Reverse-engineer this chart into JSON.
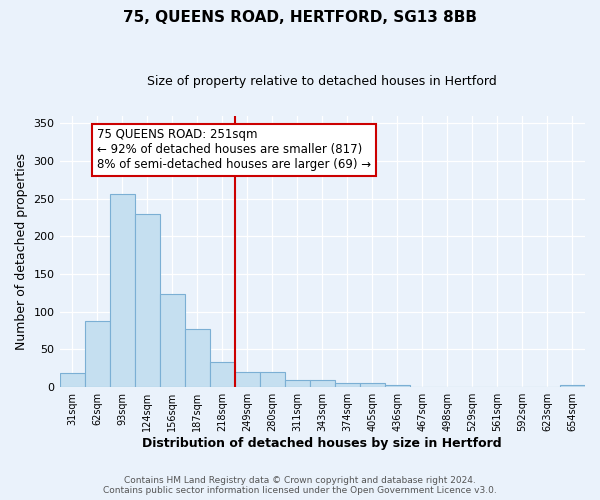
{
  "title": "75, QUEENS ROAD, HERTFORD, SG13 8BB",
  "subtitle": "Size of property relative to detached houses in Hertford",
  "xlabel": "Distribution of detached houses by size in Hertford",
  "ylabel": "Number of detached properties",
  "bar_color": "#c5dff0",
  "bar_edge_color": "#7bafd4",
  "bin_labels": [
    "31sqm",
    "62sqm",
    "93sqm",
    "124sqm",
    "156sqm",
    "187sqm",
    "218sqm",
    "249sqm",
    "280sqm",
    "311sqm",
    "343sqm",
    "374sqm",
    "405sqm",
    "436sqm",
    "467sqm",
    "498sqm",
    "529sqm",
    "561sqm",
    "592sqm",
    "623sqm",
    "654sqm"
  ],
  "bar_values": [
    19,
    88,
    256,
    229,
    123,
    77,
    33,
    20,
    20,
    10,
    10,
    5,
    5,
    3,
    0,
    0,
    0,
    0,
    0,
    0,
    3
  ],
  "vline_bin_index": 7,
  "vline_color": "#cc0000",
  "annotation_title": "75 QUEENS ROAD: 251sqm",
  "annotation_line1": "← 92% of detached houses are smaller (817)",
  "annotation_line2": "8% of semi-detached houses are larger (69) →",
  "annotation_box_color": "#ffffff",
  "annotation_box_edge": "#cc0000",
  "ylim": [
    0,
    360
  ],
  "yticks": [
    0,
    50,
    100,
    150,
    200,
    250,
    300,
    350
  ],
  "footer1": "Contains HM Land Registry data © Crown copyright and database right 2024.",
  "footer2": "Contains public sector information licensed under the Open Government Licence v3.0.",
  "background_color": "#eaf2fb",
  "grid_color": "#ffffff",
  "title_fontsize": 11,
  "subtitle_fontsize": 9,
  "axis_label_fontsize": 9,
  "tick_fontsize": 8,
  "annotation_fontsize": 8.5
}
